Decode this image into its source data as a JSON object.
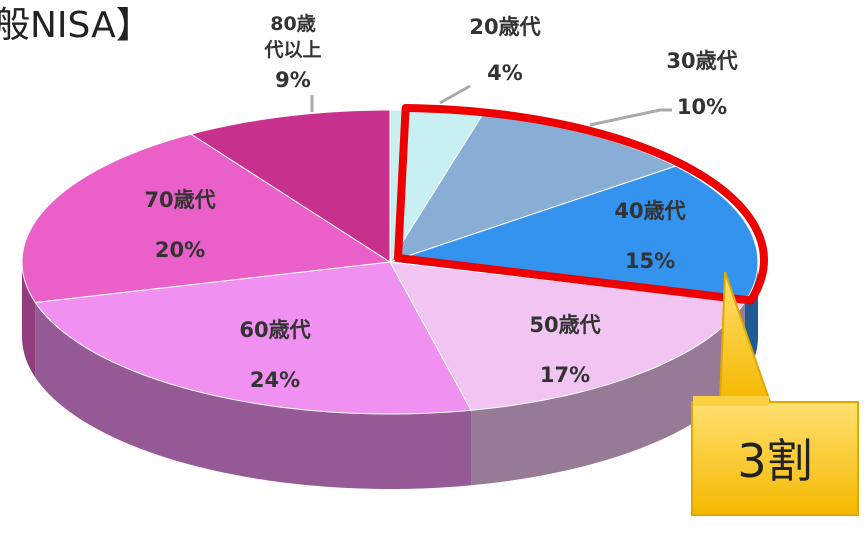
{
  "chart_data": {
    "type": "pie",
    "title": "般NISA】",
    "categories": [
      "20歳代",
      "30歳代",
      "40歳代",
      "50歳代",
      "60歳代",
      "70歳代",
      "80歳代以上"
    ],
    "values": [
      4,
      10,
      15,
      17,
      24,
      20,
      9
    ],
    "value_labels": [
      "4%",
      "10%",
      "15%",
      "17%",
      "24%",
      "20%",
      "9%"
    ],
    "colors": [
      "#c8f0f2",
      "#88aed6",
      "#3393ee",
      "#f2c4f2",
      "#f090f0",
      "#ea60c8",
      "#c8308e"
    ],
    "annotation": "3割"
  }
}
